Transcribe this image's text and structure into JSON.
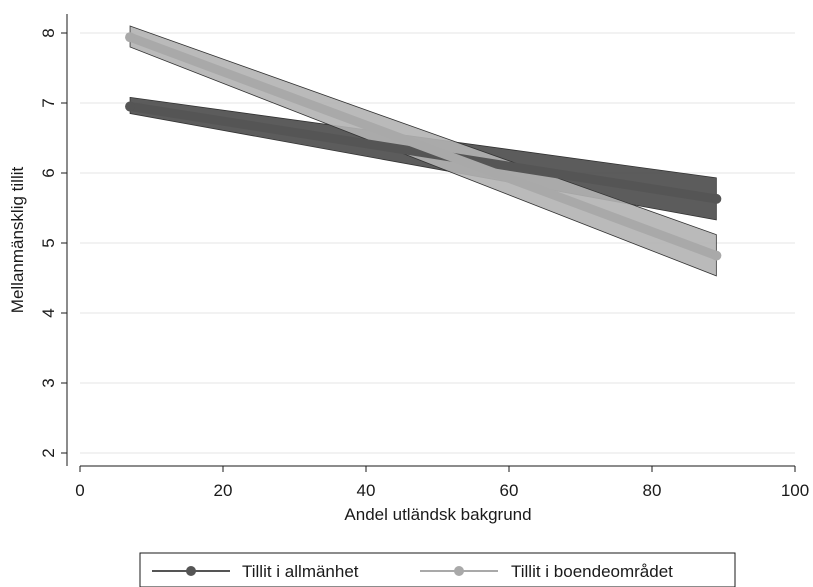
{
  "chart_data": {
    "type": "line",
    "title": "",
    "xlabel": "Andel utländsk bakgrund",
    "ylabel": "Mellanmänsklig tillit",
    "xlim": [
      0,
      100
    ],
    "ylim": [
      2,
      8
    ],
    "xticks": [
      0,
      20,
      40,
      60,
      80,
      100
    ],
    "yticks": [
      2,
      3,
      4,
      5,
      6,
      7,
      8
    ],
    "grid": "horizontal",
    "legend_position": "bottom",
    "series": [
      {
        "name": "Tillit i allmänhet",
        "color": "#555555",
        "band_color": "#4a4a4a",
        "x": [
          7,
          89
        ],
        "y": [
          6.95,
          5.63
        ],
        "ci_lower": [
          6.85,
          5.33
        ],
        "ci_upper": [
          7.08,
          5.93
        ]
      },
      {
        "name": "Tillit i boendeområdet",
        "color": "#a9a9a9",
        "band_color": "#b2b2b2",
        "x": [
          7,
          89
        ],
        "y": [
          7.94,
          4.82
        ],
        "ci_lower": [
          7.8,
          4.53
        ],
        "ci_upper": [
          8.1,
          5.12
        ]
      }
    ]
  }
}
